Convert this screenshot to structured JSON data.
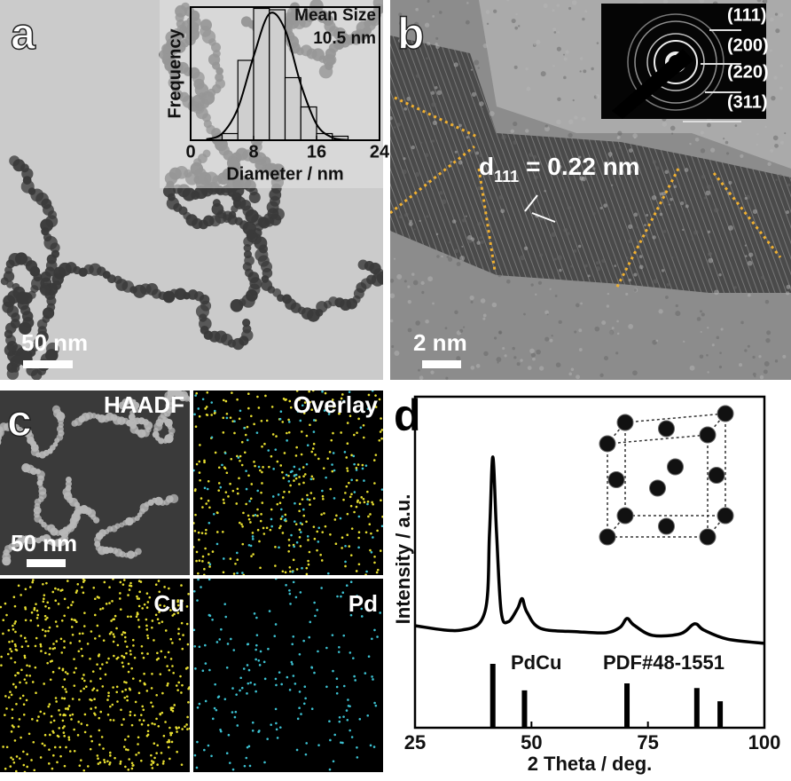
{
  "panels": {
    "a": {
      "label": "a",
      "scale_bar": "50 nm"
    },
    "b": {
      "label": "b",
      "d_spacing": {
        "symbol": "d",
        "subscript": "111",
        "text": "= 0.22 nm"
      },
      "saed_rings": [
        "(111)",
        "(200)",
        "(220)",
        "(311)"
      ],
      "scale_bar": "2 nm"
    },
    "c": {
      "label": "c",
      "maps": [
        "HAADF",
        "Overlay",
        "Cu",
        "Pd"
      ],
      "scale_bar": "50 nm"
    },
    "d": {
      "label": "d"
    }
  },
  "chart_data": [
    {
      "type": "histogram",
      "x_label": "Diameter / nm",
      "y_label": "Frequency",
      "annotation": [
        "Mean Size",
        "10.5 nm"
      ],
      "bins": [
        4,
        6,
        8,
        10,
        12,
        14,
        16,
        18,
        20
      ],
      "values": [
        5,
        60,
        99,
        98,
        47,
        25,
        5,
        3
      ],
      "color": "#cfcfcf",
      "xlim": [
        0,
        24
      ],
      "xticks": [
        0,
        8,
        16,
        24
      ],
      "ylim": [
        0,
        100
      ],
      "fit": {
        "x": [
          2,
          4,
          6,
          8,
          10,
          12,
          14,
          16,
          18,
          20
        ],
        "values": [
          0.7,
          5,
          24,
          63,
          95,
          83,
          42,
          12,
          2,
          0.2
        ]
      }
    },
    {
      "type": "line",
      "x_label": "2 Theta / deg.",
      "y_label": "Intensity / a.u.",
      "x": [
        25,
        35,
        40,
        41,
        41.7,
        42.5,
        43.5,
        45,
        47,
        48,
        49,
        52,
        60,
        66,
        69,
        70.5,
        72,
        76,
        82,
        85,
        87,
        92,
        100
      ],
      "values": [
        30.8,
        29.5,
        35,
        59,
        81.8,
        59,
        35,
        32,
        36,
        39,
        35,
        30,
        29,
        28.7,
        30.3,
        33,
        31,
        27.9,
        28.4,
        31.4,
        29.5,
        26.8,
        25.5
      ],
      "color": "#000000",
      "xlim": [
        25,
        100
      ],
      "xticks": [
        25,
        50,
        75,
        100
      ],
      "ylim": [
        0,
        100
      ],
      "reference": {
        "label": "PdCu",
        "card": "PDF#48-1551",
        "x": [
          41.7,
          48.5,
          70.5,
          85.5,
          90.5
        ],
        "values": [
          19.3,
          11.3,
          13.4,
          12,
          8
        ]
      }
    }
  ]
}
